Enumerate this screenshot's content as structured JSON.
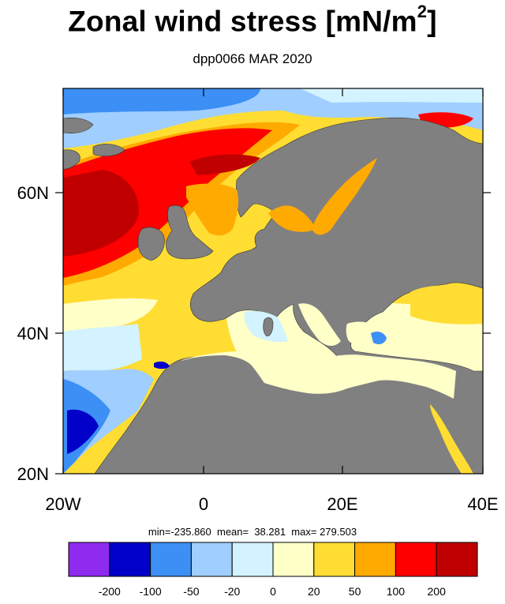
{
  "title": "Zonal wind stress [mN/m",
  "title_sup": "2",
  "title_close": "]",
  "subtitle": "dpp0066 MAR 2020",
  "stats": "min=-235.860  mean=  38.281  max= 279.503",
  "x_tick_labels": [
    "20W",
    "0",
    "20E",
    "40E"
  ],
  "y_tick_labels": [
    "60N",
    "40N",
    "20N"
  ],
  "colorbar": {
    "colors": [
      "#8f2bef",
      "#0000c8",
      "#3c8ff5",
      "#a0ceff",
      "#d2f3ff",
      "#ffffc8",
      "#ffdd33",
      "#ffaa00",
      "#ff0000",
      "#c00000"
    ],
    "labels": [
      "-200",
      "-100",
      "-50",
      "-20",
      "0",
      "20",
      "50",
      "100",
      "200"
    ]
  },
  "colors": {
    "land": "#808080",
    "ocean_strong_neg": "#0000c8",
    "ocean_neg": "#3c8ff5",
    "ocean_light_neg": "#a0ceff",
    "ocean_near_zero": "#d2f3ff",
    "ocean_light_pos": "#ffffc8",
    "ocean_pos": "#ffdd33",
    "ocean_mod_pos": "#ffaa00",
    "ocean_high_pos": "#ff0000",
    "ocean_very_high": "#c00000"
  }
}
